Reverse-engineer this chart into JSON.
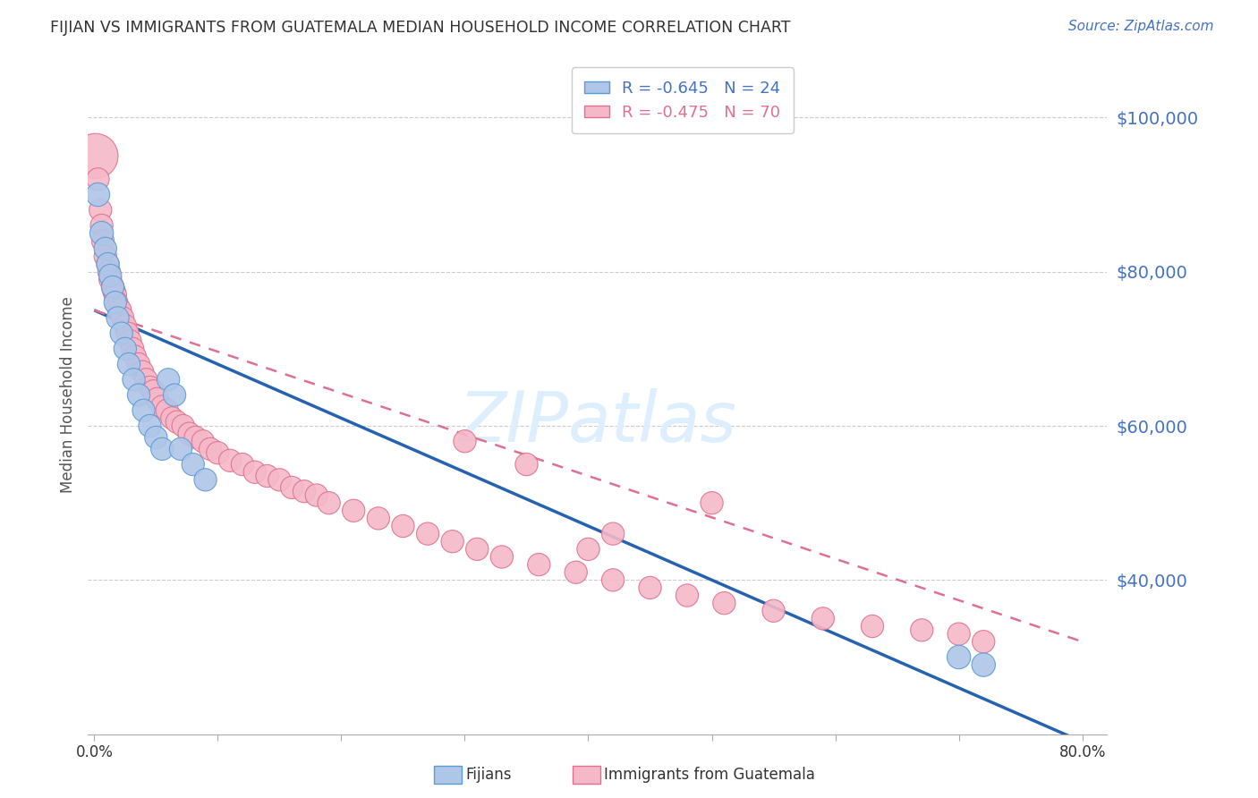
{
  "title": "FIJIAN VS IMMIGRANTS FROM GUATEMALA MEDIAN HOUSEHOLD INCOME CORRELATION CHART",
  "source": "Source: ZipAtlas.com",
  "ylabel": "Median Household Income",
  "ylabel_right_ticks": [
    "$100,000",
    "$80,000",
    "$60,000",
    "$40,000"
  ],
  "ylabel_right_values": [
    100000,
    80000,
    60000,
    40000
  ],
  "xlim": [
    -0.005,
    0.82
  ],
  "ylim": [
    20000,
    108000
  ],
  "fijians_color": "#aec6e8",
  "guatemala_color": "#f5b8c8",
  "fijians_edge_color": "#5b9bd5",
  "guatemala_edge_color": "#e07090",
  "line_blue": "#2563b0",
  "line_pink": "#e07090",
  "watermark_color": "#ddeeff",
  "background_color": "#ffffff",
  "fij_line_x0": 0.0,
  "fij_line_x1": 0.8,
  "fij_line_y0": 75000,
  "fij_line_y1": 19000,
  "guat_line_x0": 0.0,
  "guat_line_x1": 0.8,
  "guat_line_y0": 75000,
  "guat_line_y1": 32000,
  "fijians_x": [
    0.003,
    0.006,
    0.009,
    0.011,
    0.013,
    0.015,
    0.017,
    0.019,
    0.022,
    0.025,
    0.028,
    0.032,
    0.036,
    0.04,
    0.045,
    0.05,
    0.055,
    0.06,
    0.065,
    0.07,
    0.08,
    0.09,
    0.7,
    0.72
  ],
  "fijians_y": [
    90000,
    85000,
    83000,
    81000,
    79500,
    78000,
    76000,
    74000,
    72000,
    70000,
    68000,
    66000,
    64000,
    62000,
    60000,
    58500,
    57000,
    66000,
    64000,
    57000,
    55000,
    53000,
    30000,
    29000
  ],
  "fijians_size": [
    60,
    60,
    55,
    55,
    55,
    55,
    55,
    55,
    55,
    55,
    55,
    55,
    55,
    55,
    55,
    55,
    55,
    55,
    55,
    55,
    55,
    55,
    60,
    60
  ],
  "guatemala_x": [
    0.001,
    0.003,
    0.005,
    0.006,
    0.007,
    0.009,
    0.011,
    0.012,
    0.013,
    0.015,
    0.016,
    0.017,
    0.018,
    0.019,
    0.021,
    0.023,
    0.025,
    0.027,
    0.029,
    0.031,
    0.033,
    0.036,
    0.039,
    0.042,
    0.045,
    0.048,
    0.051,
    0.055,
    0.059,
    0.063,
    0.067,
    0.072,
    0.077,
    0.082,
    0.088,
    0.094,
    0.1,
    0.11,
    0.12,
    0.13,
    0.14,
    0.15,
    0.16,
    0.17,
    0.18,
    0.19,
    0.21,
    0.23,
    0.25,
    0.27,
    0.29,
    0.31,
    0.33,
    0.36,
    0.39,
    0.42,
    0.45,
    0.48,
    0.51,
    0.55,
    0.59,
    0.63,
    0.67,
    0.5,
    0.4,
    0.35,
    0.3,
    0.7,
    0.72,
    0.42
  ],
  "guatemala_y": [
    95000,
    92000,
    88000,
    86000,
    84000,
    82000,
    81000,
    80000,
    79000,
    78000,
    77500,
    77000,
    76000,
    75500,
    75000,
    74000,
    73000,
    72000,
    71000,
    70000,
    69000,
    68000,
    67000,
    66000,
    65000,
    64500,
    63500,
    62500,
    62000,
    61000,
    60500,
    60000,
    59000,
    58500,
    58000,
    57000,
    56500,
    55500,
    55000,
    54000,
    53500,
    53000,
    52000,
    51500,
    51000,
    50000,
    49000,
    48000,
    47000,
    46000,
    45000,
    44000,
    43000,
    42000,
    41000,
    40000,
    39000,
    38000,
    37000,
    36000,
    35000,
    34000,
    33500,
    50000,
    44000,
    55000,
    58000,
    33000,
    32000,
    46000
  ],
  "guatemala_size": [
    220,
    55,
    55,
    55,
    55,
    55,
    55,
    55,
    55,
    55,
    55,
    55,
    55,
    55,
    55,
    55,
    55,
    55,
    55,
    55,
    55,
    55,
    55,
    55,
    55,
    55,
    55,
    55,
    55,
    55,
    55,
    55,
    55,
    55,
    55,
    55,
    55,
    55,
    55,
    55,
    55,
    55,
    55,
    55,
    55,
    55,
    55,
    55,
    55,
    55,
    55,
    55,
    55,
    55,
    55,
    55,
    55,
    55,
    55,
    55,
    55,
    55,
    55,
    55,
    55,
    55,
    55,
    55,
    55,
    55
  ]
}
